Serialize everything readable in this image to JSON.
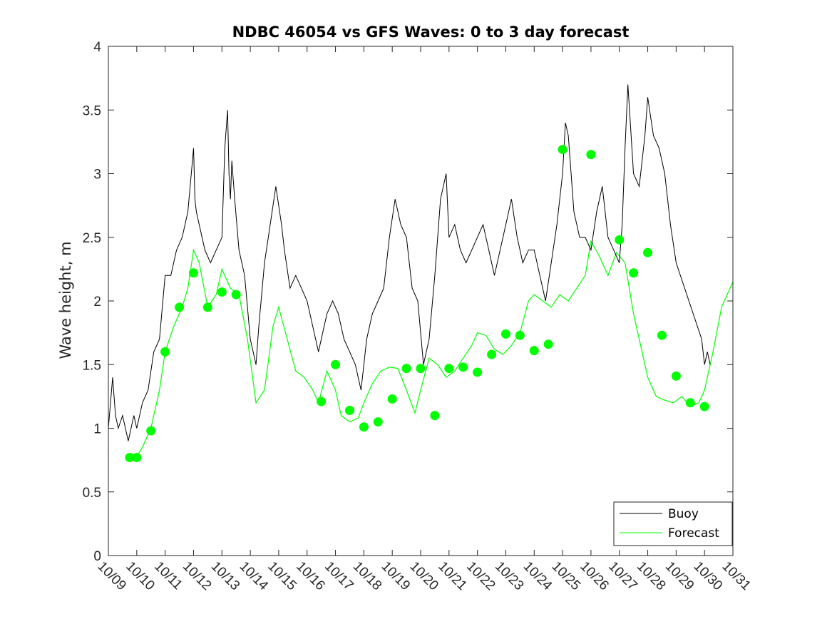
{
  "chart_data": {
    "type": "line",
    "title": "NDBC 46054 vs GFS Waves: 0 to 3 day forecast",
    "xlabel": "",
    "ylabel": "Wave height, m",
    "x_unit": "days since 10/09",
    "xlim": [
      0,
      22
    ],
    "ylim": [
      0,
      4
    ],
    "xtick_labels": [
      "10/09",
      "10/10",
      "10/11",
      "10/12",
      "10/13",
      "10/14",
      "10/15",
      "10/16",
      "10/17",
      "10/18",
      "10/19",
      "10/20",
      "10/21",
      "10/22",
      "10/23",
      "10/24",
      "10/25",
      "10/26",
      "10/27",
      "10/28",
      "10/29",
      "10/30",
      "10/31"
    ],
    "ytick_labels": [
      "0",
      "0.5",
      "1",
      "1.5",
      "2",
      "2.5",
      "3",
      "3.5",
      "4"
    ],
    "ytick_values": [
      0,
      0.5,
      1,
      1.5,
      2,
      2.5,
      3,
      3.5,
      4
    ],
    "grid": false,
    "legend": {
      "position": "bottom-right",
      "entries": [
        "Buoy",
        "Forecast"
      ]
    },
    "colors": {
      "buoy": "#000000",
      "forecast": "#00ff00",
      "axis": "#262626"
    },
    "series": [
      {
        "name": "Buoy",
        "x": [
          0,
          0.15,
          0.25,
          0.35,
          0.5,
          0.7,
          0.9,
          1.0,
          1.2,
          1.4,
          1.6,
          1.8,
          2.0,
          2.2,
          2.4,
          2.6,
          2.8,
          3.0,
          3.05,
          3.1,
          3.2,
          3.4,
          3.6,
          3.8,
          4.0,
          4.1,
          4.2,
          4.25,
          4.3,
          4.35,
          4.45,
          4.6,
          4.8,
          5.0,
          5.2,
          5.3,
          5.5,
          5.7,
          5.9,
          6.1,
          6.2,
          6.4,
          6.6,
          6.8,
          7.0,
          7.2,
          7.4,
          7.5,
          7.7,
          7.9,
          8.1,
          8.3,
          8.5,
          8.7,
          8.9,
          9.1,
          9.3,
          9.5,
          9.7,
          9.9,
          10.1,
          10.3,
          10.5,
          10.7,
          10.9,
          11.1,
          11.3,
          11.5,
          11.7,
          11.9,
          12.0,
          12.2,
          12.4,
          12.6,
          12.8,
          13.0,
          13.2,
          13.4,
          13.6,
          13.8,
          14.0,
          14.2,
          14.4,
          14.6,
          14.8,
          15.0,
          15.2,
          15.4,
          15.6,
          15.8,
          16.0,
          16.1,
          16.2,
          16.4,
          16.6,
          16.8,
          17.0,
          17.2,
          17.4,
          17.6,
          17.8,
          18.0,
          18.1,
          18.2,
          18.3,
          18.5,
          18.7,
          18.9,
          19.0,
          19.2,
          19.4,
          19.6,
          19.8,
          20.0,
          20.9,
          21.0,
          21.1,
          21.2
        ],
        "y": [
          1.0,
          1.4,
          1.1,
          1.0,
          1.1,
          0.9,
          1.1,
          1.0,
          1.2,
          1.3,
          1.6,
          1.7,
          2.2,
          2.2,
          2.4,
          2.5,
          2.7,
          3.2,
          2.8,
          2.7,
          2.6,
          2.4,
          2.3,
          2.4,
          2.5,
          3.2,
          3.5,
          3.0,
          2.8,
          3.1,
          2.8,
          2.4,
          2.2,
          1.7,
          1.5,
          1.8,
          2.3,
          2.6,
          2.9,
          2.6,
          2.4,
          2.1,
          2.2,
          2.1,
          2.0,
          1.8,
          1.6,
          1.7,
          1.9,
          2.0,
          1.9,
          1.7,
          1.6,
          1.5,
          1.3,
          1.7,
          1.9,
          2.0,
          2.1,
          2.5,
          2.8,
          2.6,
          2.5,
          2.1,
          2.0,
          1.5,
          1.7,
          2.2,
          2.8,
          3.0,
          2.5,
          2.6,
          2.4,
          2.3,
          2.4,
          2.5,
          2.6,
          2.4,
          2.2,
          2.4,
          2.6,
          2.8,
          2.5,
          2.3,
          2.4,
          2.4,
          2.2,
          2.0,
          2.3,
          2.6,
          3.0,
          3.4,
          3.3,
          2.7,
          2.5,
          2.5,
          2.4,
          2.7,
          2.9,
          2.5,
          2.4,
          2.3,
          2.6,
          3.2,
          3.7,
          3.0,
          2.9,
          3.3,
          3.6,
          3.3,
          3.2,
          3.0,
          2.6,
          2.3,
          1.7,
          1.5,
          1.6,
          1.5
        ]
      },
      {
        "name": "Forecast",
        "x": [
          0.7,
          1.0,
          1.2,
          1.5,
          1.8,
          2.0,
          2.3,
          2.6,
          2.8,
          3.0,
          3.2,
          3.5,
          3.8,
          4.0,
          4.3,
          4.6,
          4.9,
          5.2,
          5.5,
          5.8,
          6.0,
          6.3,
          6.6,
          6.9,
          7.2,
          7.4,
          7.7,
          8.0,
          8.2,
          8.5,
          8.8,
          9.0,
          9.3,
          9.6,
          9.9,
          10.2,
          10.5,
          10.8,
          11.0,
          11.3,
          11.6,
          11.9,
          12.2,
          12.5,
          12.8,
          13.0,
          13.3,
          13.6,
          13.9,
          14.2,
          14.5,
          14.8,
          15.0,
          15.3,
          15.6,
          15.9,
          16.2,
          16.5,
          16.8,
          17.0,
          17.3,
          17.6,
          17.9,
          18.2,
          18.5,
          18.8,
          19.0,
          19.3,
          19.6,
          19.9,
          20.2,
          20.5,
          20.8,
          21.0,
          21.3,
          21.6,
          22.0
        ],
        "y": [
          0.78,
          0.78,
          0.85,
          1.0,
          1.3,
          1.6,
          1.8,
          1.95,
          2.1,
          2.4,
          2.3,
          1.95,
          2.05,
          2.25,
          2.1,
          2.05,
          1.7,
          1.2,
          1.3,
          1.8,
          1.95,
          1.7,
          1.45,
          1.4,
          1.3,
          1.2,
          1.45,
          1.3,
          1.1,
          1.05,
          1.08,
          1.2,
          1.35,
          1.45,
          1.48,
          1.47,
          1.3,
          1.12,
          1.3,
          1.55,
          1.5,
          1.4,
          1.45,
          1.55,
          1.65,
          1.75,
          1.73,
          1.62,
          1.58,
          1.65,
          1.75,
          2.0,
          2.05,
          2.0,
          1.95,
          2.05,
          2.0,
          2.1,
          2.2,
          2.47,
          2.35,
          2.2,
          2.38,
          2.3,
          1.9,
          1.6,
          1.4,
          1.25,
          1.22,
          1.2,
          1.25,
          1.17,
          1.2,
          1.3,
          1.6,
          1.95,
          2.15
        ]
      }
    ],
    "markers": {
      "name": "Forecast",
      "x": [
        0.75,
        1.0,
        1.5,
        2.0,
        2.5,
        3.0,
        3.5,
        4.0,
        4.5,
        7.5,
        8.0,
        8.5,
        9.0,
        9.5,
        10.0,
        10.5,
        11.0,
        11.5,
        12.0,
        12.5,
        13.0,
        13.5,
        14.0,
        14.5,
        15.0,
        15.5,
        16.0,
        17.0,
        18.0,
        18.5,
        19.0,
        19.5,
        20.0,
        20.5,
        21.0
      ],
      "y": [
        0.77,
        0.77,
        0.98,
        1.6,
        1.95,
        2.22,
        1.95,
        2.07,
        2.05,
        1.21,
        1.5,
        1.14,
        1.01,
        1.05,
        1.23,
        1.47,
        1.47,
        1.1,
        1.47,
        1.48,
        1.44,
        1.58,
        1.74,
        1.73,
        1.61,
        1.66,
        3.19,
        3.15,
        2.48,
        2.22,
        2.38,
        1.73,
        1.41,
        1.2,
        1.17
      ]
    }
  }
}
